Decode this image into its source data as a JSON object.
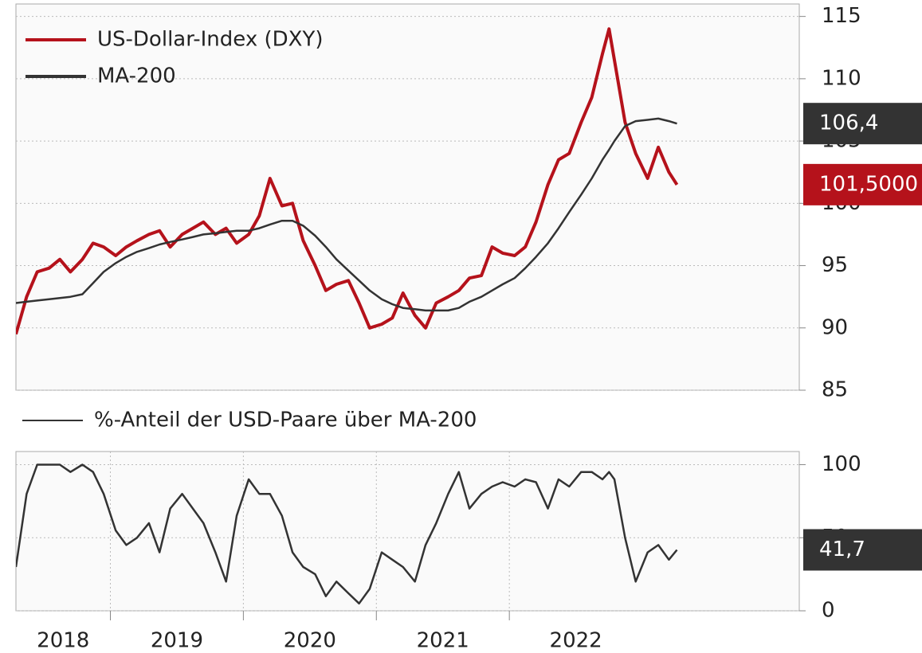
{
  "chart_data": [
    {
      "type": "line",
      "x": [
        2018.29,
        2018.37,
        2018.45,
        2018.54,
        2018.62,
        2018.7,
        2018.79,
        2018.87,
        2018.95,
        2019.04,
        2019.12,
        2019.2,
        2019.29,
        2019.37,
        2019.45,
        2019.54,
        2019.62,
        2019.7,
        2019.79,
        2019.87,
        2019.95,
        2020.04,
        2020.12,
        2020.2,
        2020.29,
        2020.37,
        2020.45,
        2020.54,
        2020.62,
        2020.7,
        2020.79,
        2020.87,
        2020.95,
        2021.04,
        2021.12,
        2021.2,
        2021.29,
        2021.37,
        2021.45,
        2021.54,
        2021.62,
        2021.7,
        2021.79,
        2021.87,
        2021.95,
        2022.04,
        2022.12,
        2022.2,
        2022.29,
        2022.37,
        2022.45,
        2022.54,
        2022.62,
        2022.7,
        2022.75,
        2022.79,
        2022.87,
        2022.95,
        2023.04,
        2023.12,
        2023.2,
        2023.26
      ],
      "series": [
        {
          "name": "US-Dollar-Index (DXY)",
          "color": "#b5121b",
          "end_label": "101,5000",
          "values": [
            89.5,
            92.5,
            94.5,
            94.8,
            95.5,
            94.5,
            95.5,
            96.8,
            96.5,
            95.8,
            96.5,
            97.0,
            97.5,
            97.8,
            96.5,
            97.5,
            98.0,
            98.5,
            97.5,
            98.0,
            96.8,
            97.5,
            99.0,
            102.0,
            99.8,
            100.0,
            97.0,
            95.0,
            93.0,
            93.5,
            93.8,
            92.0,
            90.0,
            90.3,
            90.8,
            92.8,
            91.0,
            90.0,
            92.0,
            92.5,
            93.0,
            94.0,
            94.2,
            96.5,
            96.0,
            95.8,
            96.5,
            98.5,
            101.5,
            103.5,
            104.0,
            106.5,
            108.5,
            112.0,
            114.0,
            111.5,
            106.5,
            104.0,
            102.0,
            104.5,
            102.5,
            101.5
          ]
        },
        {
          "name": "MA-200",
          "color": "#333333",
          "end_label": "106,4",
          "values": [
            92.0,
            92.1,
            92.2,
            92.3,
            92.4,
            92.5,
            92.7,
            93.6,
            94.5,
            95.2,
            95.7,
            96.1,
            96.4,
            96.7,
            96.9,
            97.1,
            97.3,
            97.5,
            97.6,
            97.7,
            97.8,
            97.8,
            98.0,
            98.3,
            98.6,
            98.6,
            98.2,
            97.4,
            96.5,
            95.5,
            94.6,
            93.8,
            93.0,
            92.3,
            91.9,
            91.6,
            91.5,
            91.4,
            91.4,
            91.4,
            91.6,
            92.1,
            92.5,
            93.0,
            93.5,
            94.0,
            94.8,
            95.7,
            96.8,
            98.0,
            99.3,
            100.7,
            102.0,
            103.5,
            104.3,
            105.0,
            106.2,
            106.6,
            106.7,
            106.8,
            106.6,
            106.4
          ]
        }
      ],
      "xlim": [
        2018.29,
        2024.18
      ],
      "ylim": [
        85,
        116
      ],
      "yticks": [
        85,
        90,
        95,
        100,
        105,
        110,
        115
      ],
      "grid": true
    },
    {
      "type": "line",
      "x": [
        2018.29,
        2018.37,
        2018.45,
        2018.54,
        2018.62,
        2018.7,
        2018.79,
        2018.87,
        2018.95,
        2019.04,
        2019.12,
        2019.2,
        2019.29,
        2019.37,
        2019.45,
        2019.54,
        2019.62,
        2019.7,
        2019.79,
        2019.87,
        2019.95,
        2020.04,
        2020.12,
        2020.2,
        2020.29,
        2020.37,
        2020.45,
        2020.54,
        2020.62,
        2020.7,
        2020.79,
        2020.87,
        2020.95,
        2021.04,
        2021.12,
        2021.2,
        2021.29,
        2021.37,
        2021.45,
        2021.54,
        2021.62,
        2021.7,
        2021.79,
        2021.87,
        2021.95,
        2022.04,
        2022.12,
        2022.2,
        2022.29,
        2022.37,
        2022.45,
        2022.54,
        2022.62,
        2022.7,
        2022.75,
        2022.79,
        2022.87,
        2022.95,
        2023.04,
        2023.12,
        2023.2,
        2023.26
      ],
      "series": [
        {
          "name": "%-Anteil der USD-Paare über MA-200",
          "color": "#333333",
          "end_label": "41,7",
          "values": [
            30,
            80,
            100,
            100,
            100,
            95,
            100,
            95,
            80,
            55,
            45,
            50,
            60,
            40,
            70,
            80,
            70,
            60,
            40,
            20,
            65,
            90,
            80,
            80,
            65,
            40,
            30,
            25,
            10,
            20,
            12,
            5,
            15,
            40,
            35,
            30,
            20,
            45,
            60,
            80,
            95,
            70,
            80,
            85,
            88,
            85,
            90,
            88,
            70,
            90,
            85,
            95,
            95,
            90,
            95,
            90,
            50,
            20,
            40,
            45,
            35,
            41.7
          ]
        }
      ],
      "xlim": [
        2018.29,
        2024.18
      ],
      "ylim": [
        0,
        109
      ],
      "yticks": [
        0,
        50,
        100
      ],
      "xticks": [
        2018,
        2019,
        2020,
        2021,
        2022
      ],
      "grid": true
    }
  ]
}
